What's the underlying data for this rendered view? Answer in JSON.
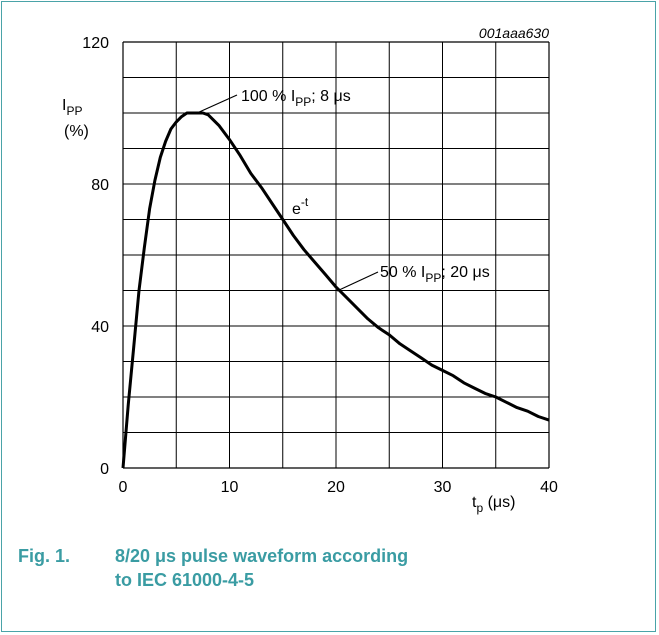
{
  "figure": {
    "id_label": "001aaa630",
    "caption_number": "Fig. 1.",
    "caption_text": "8/20 μs pulse waveform according to IEC 61000-4-5"
  },
  "chart_data": {
    "type": "line",
    "xlabel_main": "t",
    "xlabel_sub": "p",
    "xlabel_unit": " (μs)",
    "ylabel_main": "I",
    "ylabel_sub": "PP",
    "ylabel_unit": "(%)",
    "xlim": [
      0,
      40
    ],
    "ylim": [
      0,
      120
    ],
    "x_ticks": [
      0,
      10,
      20,
      30,
      40
    ],
    "y_ticks": [
      0,
      40,
      80,
      120
    ],
    "x_minor_step": 5,
    "y_minor_step": 10,
    "grid": true,
    "series": [
      {
        "x": [
          0,
          0.5,
          1,
          1.5,
          2,
          2.5,
          3,
          3.5,
          4,
          4.5,
          5,
          5.5,
          6,
          6.5,
          7,
          7.5,
          8,
          9,
          10,
          11,
          12,
          13,
          14,
          15,
          16,
          17,
          18,
          19,
          20,
          21,
          22,
          23,
          24,
          25,
          26,
          27,
          28,
          29,
          30,
          31,
          32,
          33,
          34,
          35,
          36,
          37,
          38,
          39,
          40
        ],
        "y": [
          0,
          18,
          34,
          50,
          62,
          73,
          81,
          87.5,
          92,
          95.5,
          97.5,
          99,
          100,
          100,
          100,
          100,
          99.5,
          96.5,
          92.5,
          88,
          83,
          79,
          74.5,
          70,
          65.5,
          61.5,
          58,
          54.5,
          51,
          48,
          45,
          42,
          39.5,
          37.5,
          35,
          33,
          31,
          29,
          27.5,
          26,
          24,
          22.5,
          21,
          20,
          18.5,
          17,
          16,
          14.5,
          13.5
        ]
      }
    ],
    "annotations": {
      "peak_prefix": "100 % I",
      "peak_sub": "PP",
      "peak_suffix": "; 8 μs",
      "half_prefix": "50 % I",
      "half_sub": "PP",
      "half_suffix": "; 20 μs",
      "decay_main": "e",
      "decay_sup": "-t"
    }
  }
}
